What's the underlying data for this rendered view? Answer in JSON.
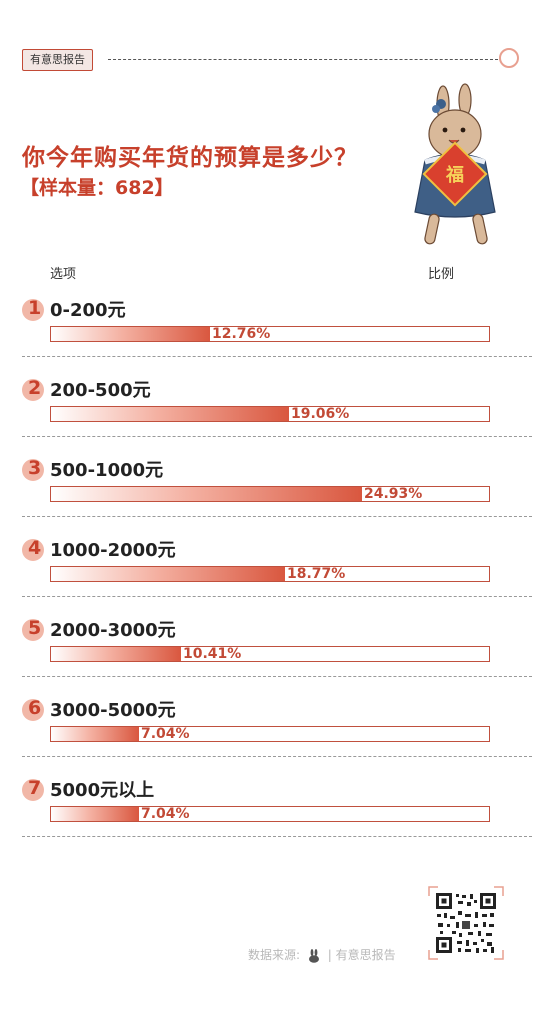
{
  "brand": "有意思报告",
  "title": "你今年购买年货的预算是多少？",
  "sample": "【样本量：682】",
  "headers": {
    "option": "选项",
    "ratio": "比例"
  },
  "source": {
    "prefix": "数据来源:",
    "divider": "|",
    "name": "有意思报告"
  },
  "colors": {
    "accent": "#c7402b",
    "badge": "#f1b7a7",
    "bar_end": "#d9573f"
  },
  "chart_data": {
    "type": "bar",
    "orientation": "horizontal",
    "xlim": [
      0,
      35
    ],
    "categories": [
      "0-200元",
      "200-500元",
      "500-1000元",
      "1000-2000元",
      "2000-3000元",
      "3000-5000元",
      "5000元以上"
    ],
    "numbers": [
      "1",
      "2",
      "3",
      "4",
      "5",
      "6",
      "7"
    ],
    "values": [
      12.76,
      19.06,
      24.93,
      18.77,
      10.41,
      7.04,
      7.04
    ],
    "labels": [
      "12.76%",
      "19.06%",
      "24.93%",
      "18.77%",
      "10.41%",
      "7.04%",
      "7.04%"
    ]
  }
}
